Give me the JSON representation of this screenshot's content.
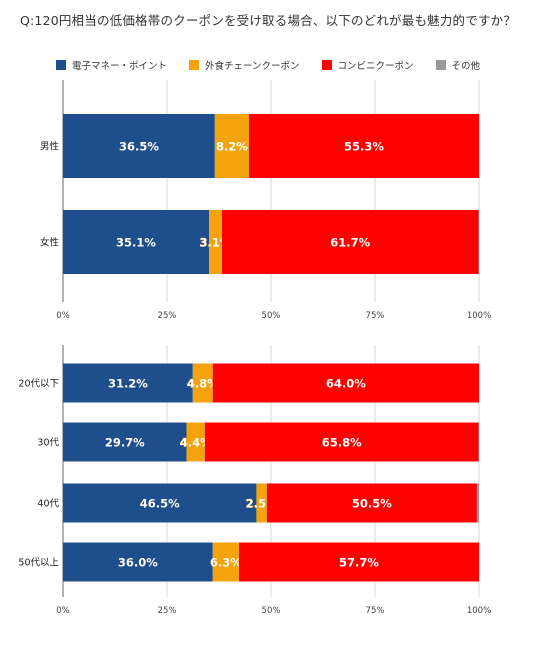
{
  "title": "Q:120円相当の低価格帯のクーポンを受け取る場合、以下のどれが最も魅力的ですか？",
  "legend": [
    {
      "name": "電子マネー・ポイント",
      "color": "#1f4e8c"
    },
    {
      "name": "外食チェーンクーポン",
      "color": "#f4a30c"
    },
    {
      "name": "コンビニクーポン",
      "color": "#ff0000"
    },
    {
      "name": "その他",
      "color": "#999999"
    }
  ],
  "chart_data": [
    {
      "type": "bar",
      "orientation": "horizontal",
      "stacked": true,
      "categories": [
        "男性",
        "女性"
      ],
      "series": [
        {
          "name": "電子マネー・ポイント",
          "values": [
            36.5,
            35.1
          ],
          "labels": [
            "36.5%",
            "35.1%"
          ]
        },
        {
          "name": "外食チェーンクーポン",
          "values": [
            8.2,
            3.1
          ],
          "labels": [
            "8.2%",
            "3.1%"
          ]
        },
        {
          "name": "コンビニクーポン",
          "values": [
            55.3,
            61.7
          ],
          "labels": [
            "55.3%",
            "61.7%"
          ]
        },
        {
          "name": "その他",
          "values": [
            0.0,
            0.1
          ],
          "labels": [
            "",
            ""
          ]
        }
      ],
      "xlim": [
        0,
        100
      ],
      "xticks": [
        "0%",
        "25%",
        "50%",
        "75%",
        "100%"
      ],
      "grid": true
    },
    {
      "type": "bar",
      "orientation": "horizontal",
      "stacked": true,
      "categories": [
        "20代以下",
        "30代",
        "40代",
        "50代以上"
      ],
      "series": [
        {
          "name": "電子マネー・ポイント",
          "values": [
            31.2,
            29.7,
            46.5,
            36.0
          ],
          "labels": [
            "31.2%",
            "29.7%",
            "46.5%",
            "36.0%"
          ]
        },
        {
          "name": "外食チェーンクーポン",
          "values": [
            4.8,
            4.4,
            2.5,
            6.3
          ],
          "labels": [
            "4.8%",
            "4.4%",
            "2.5%",
            "6.3%"
          ]
        },
        {
          "name": "コンビニクーポン",
          "values": [
            64.0,
            65.8,
            50.5,
            57.7
          ],
          "labels": [
            "64.0%",
            "65.8%",
            "50.5%",
            "57.7%"
          ]
        },
        {
          "name": "その他",
          "values": [
            0.0,
            0.1,
            0.5,
            0.0
          ],
          "labels": [
            "",
            "",
            "",
            ""
          ]
        }
      ],
      "xlim": [
        0,
        100
      ],
      "xticks": [
        "0%",
        "25%",
        "50%",
        "75%",
        "100%"
      ],
      "grid": true
    }
  ]
}
